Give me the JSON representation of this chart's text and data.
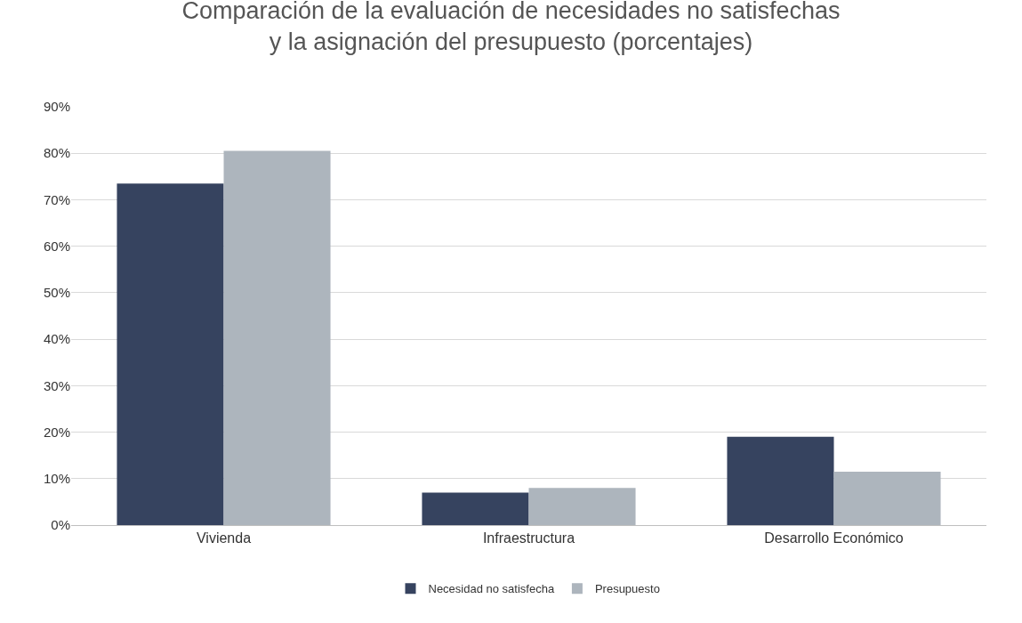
{
  "chart_data": {
    "type": "bar",
    "title": "Comparación de la evaluación de necesidades no satisfechas\ny la asignación del presupuesto (porcentajes)",
    "categories": [
      "Vivienda",
      "Infraestructura",
      "Desarrollo Económico"
    ],
    "series": [
      {
        "name": "Necesidad no satisfecha",
        "color": "#36435f",
        "values": [
          73.5,
          7,
          19
        ]
      },
      {
        "name": "Presupuesto",
        "color": "#adb5bd",
        "values": [
          80.5,
          8,
          11.5
        ]
      }
    ],
    "ylim": [
      0,
      90
    ],
    "yticks": [
      {
        "value": 0,
        "label": "0%"
      },
      {
        "value": 10,
        "label": "10%"
      },
      {
        "value": 20,
        "label": "20%"
      },
      {
        "value": 30,
        "label": "30%"
      },
      {
        "value": 40,
        "label": "40%"
      },
      {
        "value": 50,
        "label": "50%"
      },
      {
        "value": 60,
        "label": "60%"
      },
      {
        "value": 70,
        "label": "70%"
      },
      {
        "value": 80,
        "label": "80%"
      },
      {
        "value": 90,
        "label": "90%"
      }
    ],
    "grid": "y",
    "legend": "bottom"
  }
}
